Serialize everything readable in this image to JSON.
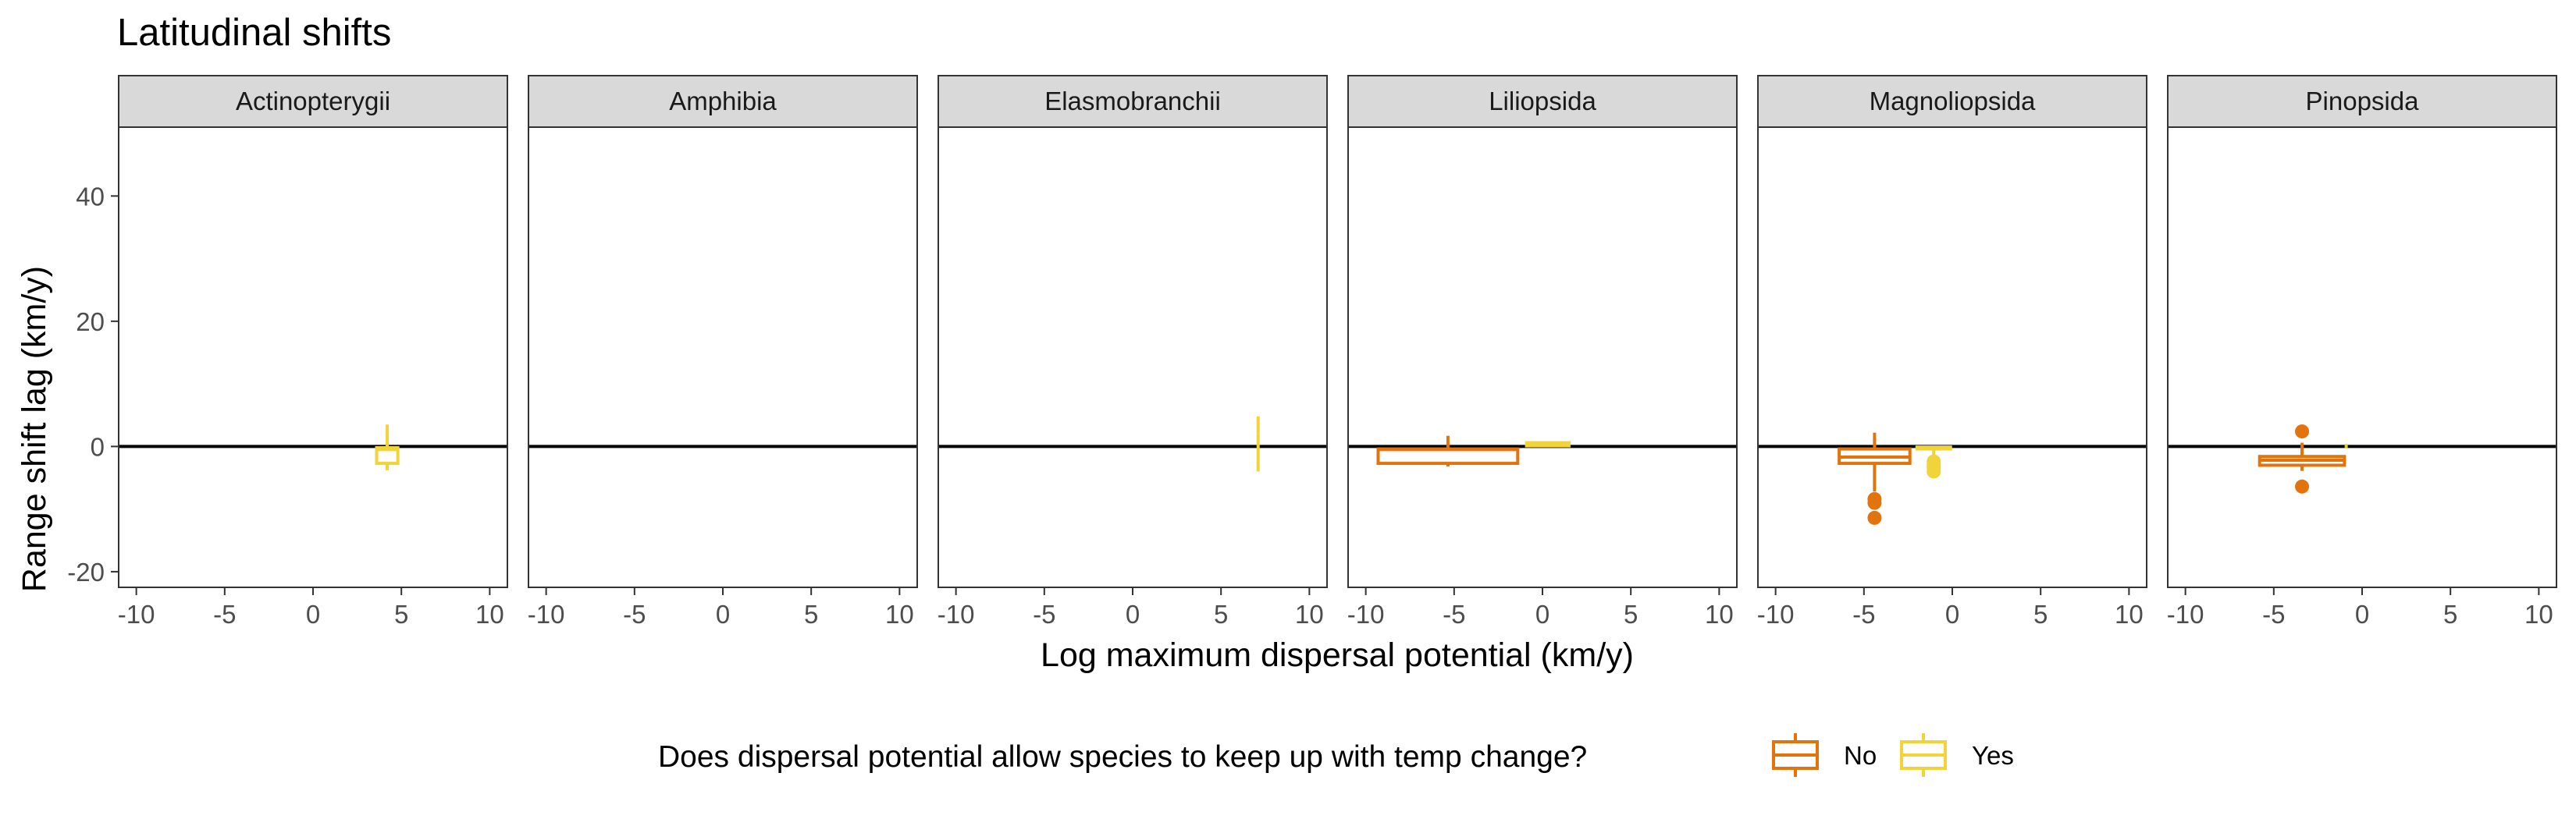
{
  "chart_data": {
    "type": "boxplot",
    "title": "Latitudinal shifts",
    "xlabel": "Log maximum dispersal potential (km/y)",
    "ylabel": "Range shift lag (km/y)",
    "xlim": [
      -11,
      11
    ],
    "ylim": [
      -22.5,
      51
    ],
    "x_ticks": [
      -10,
      -5,
      0,
      5,
      10
    ],
    "x_tick_labels": [
      "-10",
      "-5",
      "0",
      "5",
      "10"
    ],
    "y_ticks": [
      -20,
      0,
      20,
      40
    ],
    "y_tick_labels": [
      "-20",
      "0",
      "20",
      "40"
    ],
    "reference_line_y": 0,
    "grid": false,
    "legend": {
      "title": "Does dispersal potential allow species to keep up with temp change?",
      "position": "bottom",
      "items": [
        {
          "label": "No",
          "color": "#E3730C"
        },
        {
          "label": "Yes",
          "color": "#F0D43A"
        }
      ]
    },
    "colors": {
      "No": "#E3730C",
      "Yes": "#F0D43A"
    },
    "facets": [
      {
        "name": "Actinopterygii",
        "boxes": [
          {
            "group": "Yes",
            "xmin": 3.6,
            "xmax": 4.8,
            "q1": -2.7,
            "median": -0.5,
            "q3": -0.2,
            "whisker_low": -3.8,
            "whisker_high": 3.5,
            "outliers": []
          }
        ]
      },
      {
        "name": "Amphibia",
        "boxes": []
      },
      {
        "name": "Elasmobranchii",
        "boxes": [
          {
            "group": "Yes",
            "xmin": 7.1,
            "xmax": 7.1,
            "q1": -2.0,
            "median": 0.0,
            "q3": 2.0,
            "whisker_low": -4.0,
            "whisker_high": 4.8,
            "outliers": []
          }
        ]
      },
      {
        "name": "Liliopsida",
        "boxes": [
          {
            "group": "No",
            "xmin": -9.3,
            "xmax": -1.4,
            "q1": -2.7,
            "median": -0.5,
            "q3": -0.4,
            "whisker_low": -3.2,
            "whisker_high": 1.7,
            "outliers": []
          },
          {
            "group": "Yes",
            "xmin": -0.9,
            "xmax": 1.5,
            "q1": 0.1,
            "median": 0.4,
            "q3": 0.6,
            "whisker_low": 0.1,
            "whisker_high": 0.6,
            "outliers": []
          }
        ]
      },
      {
        "name": "Magnoliopsida",
        "boxes": [
          {
            "group": "No",
            "xmin": -6.4,
            "xmax": -2.4,
            "q1": -2.7,
            "median": -1.7,
            "q3": -0.4,
            "whisker_low": -7.2,
            "whisker_high": 2.2,
            "outliers": [
              -8.4,
              -9.0,
              -11.4
            ]
          },
          {
            "group": "Yes",
            "xmin": -2.0,
            "xmax": -0.1,
            "q1": -0.4,
            "median": -0.2,
            "q3": -0.1,
            "whisker_low": -1.6,
            "whisker_high": 0.0,
            "outliers": [
              -2.4,
              -3.0,
              -3.4,
              -4.0
            ]
          }
        ]
      },
      {
        "name": "Pinopsida",
        "boxes": [
          {
            "group": "No",
            "xmin": -5.8,
            "xmax": -1.0,
            "q1": -3.0,
            "median": -2.2,
            "q3": -1.6,
            "whisker_low": -3.9,
            "whisker_high": 0.6,
            "outliers": [
              2.4,
              -6.4
            ]
          },
          {
            "group": "Yes",
            "xmin": -0.9,
            "xmax": -0.9,
            "q1": -0.1,
            "median": 0.0,
            "q3": 0.1,
            "whisker_low": -0.3,
            "whisker_high": 0.4,
            "outliers": []
          }
        ]
      }
    ]
  }
}
